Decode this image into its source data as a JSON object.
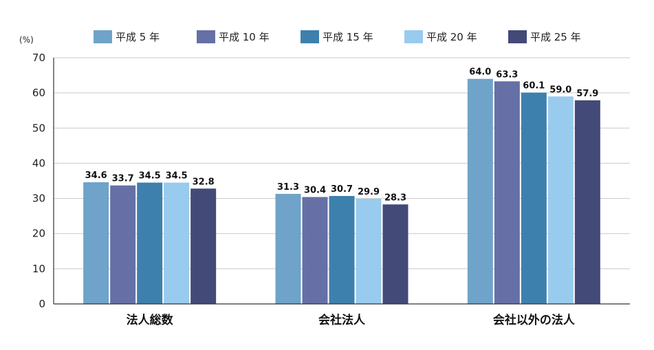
{
  "chart_data": {
    "type": "bar",
    "title": "",
    "xlabel": "",
    "ylabel": "",
    "unit": "(%)",
    "ylim": [
      0,
      70
    ],
    "yticks": [
      0,
      10,
      20,
      30,
      40,
      50,
      60,
      70
    ],
    "grid": true,
    "legend_position": "top",
    "categories": [
      "法人総数",
      "会社法人",
      "会社以外の法人"
    ],
    "series": [
      {
        "name": "平成 5 年",
        "color": "#6fa3c9",
        "values": [
          34.6,
          31.3,
          64.0
        ],
        "labels": [
          "34.6",
          "31.3",
          "64.0"
        ]
      },
      {
        "name": "平成 10 年",
        "color": "#6670a6",
        "values": [
          33.7,
          30.4,
          63.3
        ],
        "labels": [
          "33.7",
          "30.4",
          "63.3"
        ]
      },
      {
        "name": "平成 15 年",
        "color": "#3e80ad",
        "values": [
          34.5,
          30.7,
          60.1
        ],
        "labels": [
          "34.5",
          "30.7",
          "60.1"
        ]
      },
      {
        "name": "平成 20 年",
        "color": "#98cbee",
        "values": [
          34.5,
          29.9,
          59.0
        ],
        "labels": [
          "34.5",
          "29.9",
          "59.0"
        ]
      },
      {
        "name": "平成 25 年",
        "color": "#434a78",
        "values": [
          32.8,
          28.3,
          57.9
        ],
        "labels": [
          "32.8",
          "28.3",
          "57.9"
        ]
      }
    ]
  }
}
